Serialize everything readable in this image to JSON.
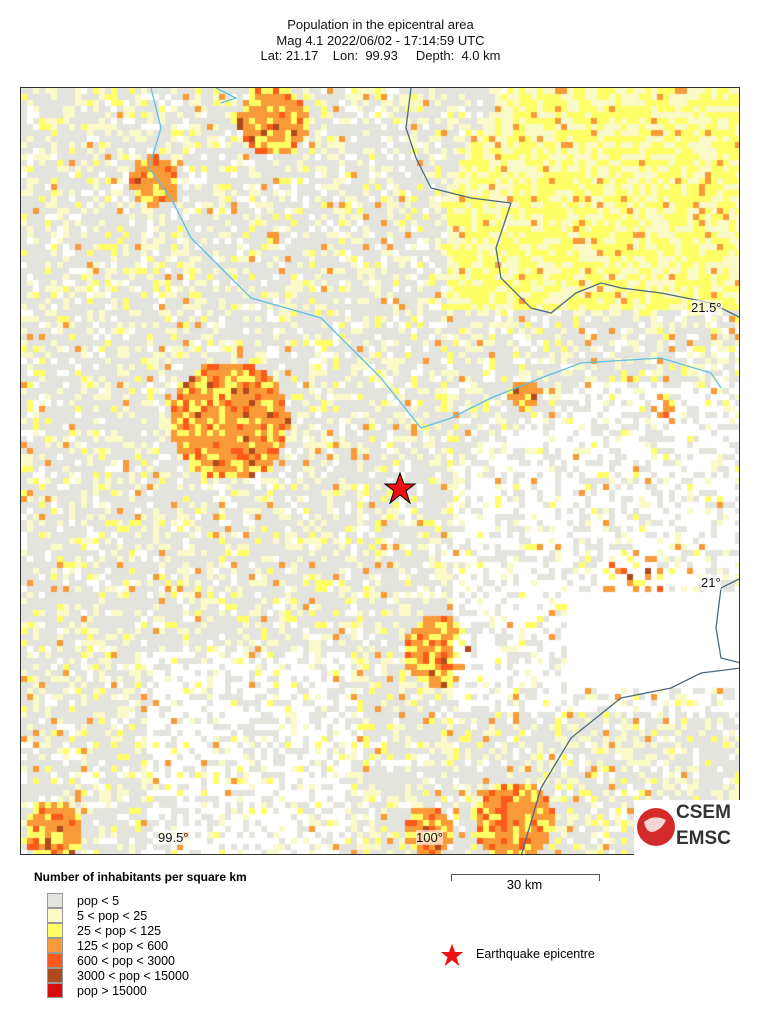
{
  "header": {
    "title": "Population in the epicentral area",
    "line2": "Mag 4.1  2022/06/02 - 17:14:59 UTC",
    "line3": "Lat: 21.17    Lon:  99.93     Depth:  4.0 km"
  },
  "map": {
    "lat_labels": [
      "21.5°",
      "21°"
    ],
    "lon_labels": [
      "99.5°",
      "100°"
    ],
    "epicentre": {
      "lat": 21.17,
      "lon": 99.93
    },
    "epicentre_icon": "red-star-icon",
    "river_color": "#5fbfe0",
    "border_color": "#4a6a80"
  },
  "legend": {
    "title": "Number of inhabitants per square km",
    "items": [
      {
        "label": "pop < 5",
        "color": "#e4e4de"
      },
      {
        "label": "5 < pop < 25",
        "color": "#fafac8"
      },
      {
        "label": "25 < pop < 125",
        "color": "#ffff66"
      },
      {
        "label": "125 < pop < 600",
        "color": "#f99a38"
      },
      {
        "label": "600 < pop < 3000",
        "color": "#fb5a1a"
      },
      {
        "label": "3000 < pop < 15000",
        "color": "#b04a1c"
      },
      {
        "label": "pop > 15000",
        "color": "#d80c0c"
      }
    ]
  },
  "scale_bar": {
    "label": "30 km"
  },
  "epicentre_legend": {
    "label": "Earthquake epicentre"
  },
  "logo": {
    "text1": "CSEM",
    "text2": "EMSC"
  }
}
